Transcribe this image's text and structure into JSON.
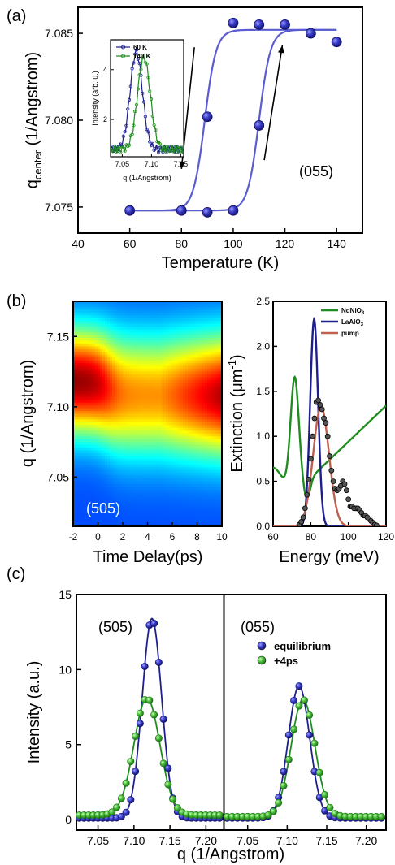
{
  "colors": {
    "blue": "#1c1f8c",
    "blue_fill": "#3a3cc8",
    "green": "#1f8c1f",
    "green_fill": "#4cbf3c",
    "red": "#c06050",
    "black": "#000000"
  },
  "panel_labels": [
    "(a)",
    "(b)",
    "(c)"
  ],
  "chart_data": [
    {
      "id": "a_main",
      "type": "scatter",
      "xlabel": "Temperature (K)",
      "ylabel_main": "q",
      "ylabel_sub": "center",
      "ylabel_rest": " (1/Angstrom)",
      "annotation": "(055)",
      "xlim": [
        40,
        150
      ],
      "ylim": [
        7.0735,
        7.0865
      ],
      "xticks": [
        40,
        60,
        80,
        100,
        120,
        140
      ],
      "yticks": [
        7.075,
        7.08,
        7.085
      ],
      "ytick_labels": [
        "7.075",
        "7.080",
        "7.085"
      ],
      "cooling_points": {
        "x": [
          60,
          80,
          90,
          100,
          110
        ],
        "y": [
          7.0748,
          7.0748,
          7.0802,
          7.0856,
          7.0855
        ]
      },
      "warming_points": {
        "x": [
          90,
          100,
          110,
          120,
          130,
          140
        ],
        "y": [
          7.0747,
          7.0748,
          7.0797,
          7.0855,
          7.085,
          7.0845
        ]
      },
      "fit_cooling": {
        "center": 89,
        "width": 2.2,
        "low": 7.0748,
        "high": 7.0852
      },
      "fit_warming": {
        "center": 110,
        "width": 2.2,
        "low": 7.0748,
        "high": 7.0852
      },
      "fit_range": [
        60,
        140
      ],
      "arrows": [
        {
          "from": [
            85,
            7.0842
          ],
          "to": [
            80,
            7.0772
          ]
        },
        {
          "from": [
            112,
            7.0777
          ],
          "to": [
            119,
            7.0843
          ]
        }
      ]
    },
    {
      "id": "a_inset",
      "type": "line",
      "xlabel": "q (1/Angstrom)",
      "ylabel": "Intensity (arb. u.)",
      "xlim": [
        7.03,
        7.155
      ],
      "ylim": [
        0.5,
        5.2
      ],
      "xticks": [
        7.05,
        7.1,
        7.15
      ],
      "xtick_labels": [
        "7.05",
        "7.10",
        "7.15"
      ],
      "yticks": [
        2,
        4
      ],
      "series": [
        {
          "name": "60 K",
          "color_key": "blue",
          "peak": 7.074,
          "amp": 3.9,
          "sigma": 0.0105,
          "base": 0.8
        },
        {
          "name": "140 K",
          "color_key": "green",
          "peak": 7.087,
          "amp": 3.7,
          "sigma": 0.0108,
          "base": 0.8
        }
      ]
    },
    {
      "id": "b_heatmap",
      "type": "heatmap",
      "xlabel": "Time Delay(ps)",
      "ylabel": "q (1/Angstrom)",
      "annotation": "(505)",
      "xlim": [
        -2,
        10
      ],
      "ylim": [
        7.015,
        7.175
      ],
      "xticks": [
        -2,
        0,
        2,
        4,
        6,
        8,
        10
      ],
      "yticks": [
        7.05,
        7.1,
        7.15
      ],
      "ytick_labels": [
        "7.05",
        "7.10",
        "7.15"
      ],
      "pre_peak": 7.118,
      "post_peak": 7.108,
      "peak_intensity_pre": 1.0,
      "peak_intensity_post": 0.68
    },
    {
      "id": "b_spectra",
      "type": "line",
      "xlabel": "Energy (meV)",
      "ylabel_main": "Extinction (",
      "ylabel_unit": "μm",
      "ylabel_sup": "-1",
      "ylabel_close": ")",
      "xlim": [
        60,
        120
      ],
      "ylim": [
        0,
        2.5
      ],
      "xticks": [
        60,
        80,
        100,
        120
      ],
      "yticks": [
        0.0,
        0.5,
        1.0,
        1.5,
        2.0,
        2.5
      ],
      "ytick_labels": [
        "0.0",
        "0.5",
        "1.0",
        "1.5",
        "2.0",
        "2.5"
      ],
      "series": [
        {
          "name": "NdNiO",
          "sub": "3",
          "color_key": "green"
        },
        {
          "name": "LaAlO",
          "sub": "3",
          "color_key": "blue"
        },
        {
          "name": "pump",
          "sub": "",
          "color_key": "red"
        }
      ],
      "pump_points": {
        "x": [
          74,
          75,
          76,
          77,
          78,
          79,
          80,
          81,
          82,
          83,
          84,
          85,
          86,
          87,
          88,
          89,
          90,
          91,
          92,
          93,
          94,
          95,
          96,
          97,
          98,
          99,
          100,
          101,
          102,
          103,
          104,
          105,
          106,
          107,
          108,
          109,
          110,
          111,
          112,
          113,
          114,
          115
        ],
        "y": [
          0.02,
          0.05,
          0.1,
          0.2,
          0.35,
          0.52,
          0.75,
          1.0,
          1.2,
          1.38,
          1.4,
          1.35,
          1.3,
          1.2,
          1.15,
          1.0,
          0.78,
          0.62,
          0.5,
          0.42,
          0.4,
          0.42,
          0.45,
          0.5,
          0.47,
          0.4,
          0.3,
          0.22,
          0.22,
          0.2,
          0.2,
          0.2,
          0.18,
          0.15,
          0.12,
          0.12,
          0.1,
          0.08,
          0.06,
          0.04,
          0.02,
          0.01
        ]
      }
    },
    {
      "id": "c_left",
      "type": "line",
      "ylabel": "Intensity (a.u.)",
      "annotation": "(505)",
      "xlim": [
        7.02,
        7.225
      ],
      "ylim": [
        -0.7,
        15
      ],
      "xticks": [
        7.05,
        7.1,
        7.15,
        7.2
      ],
      "xtick_labels": [
        "7.05",
        "7.10",
        "7.15",
        "7.20"
      ],
      "yticks": [
        0,
        5,
        10,
        15
      ],
      "series": [
        {
          "name": "equilibrium",
          "color_key": "blue",
          "peak": 7.125,
          "amp": 13.3,
          "sigma": 0.0135,
          "base": 0.1
        },
        {
          "name": "+4ps",
          "color_key": "green",
          "peak": 7.118,
          "amp": 7.8,
          "sigma": 0.018,
          "base": 0.3
        }
      ]
    },
    {
      "id": "c_right",
      "type": "line",
      "xlabel": "q (1/Angstrom)",
      "annotation": "(055)",
      "xlim": [
        7.02,
        7.225
      ],
      "ylim": [
        -0.7,
        15
      ],
      "xticks": [
        7.05,
        7.1,
        7.15,
        7.2
      ],
      "xtick_labels": [
        "7.05",
        "7.10",
        "7.15",
        "7.20"
      ],
      "series": [
        {
          "name": "equilibrium",
          "color_key": "blue",
          "peak": 7.115,
          "amp": 8.8,
          "sigma": 0.0135,
          "base": 0.1
        },
        {
          "name": "+4ps",
          "color_key": "green",
          "peak": 7.12,
          "amp": 7.8,
          "sigma": 0.015,
          "base": 0.2
        }
      ]
    }
  ]
}
